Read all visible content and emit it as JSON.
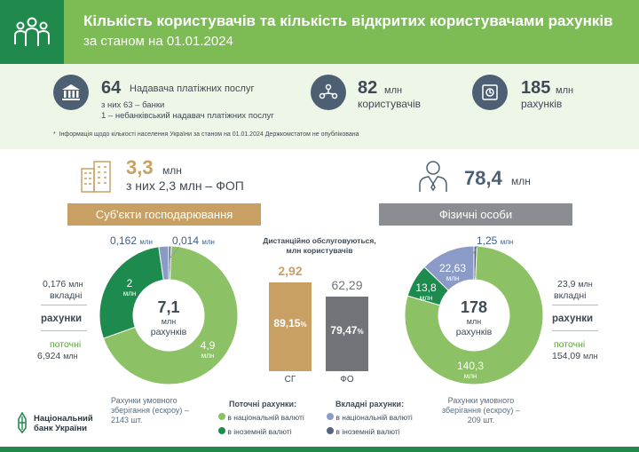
{
  "header": {
    "title": "Кількість користувачів та кількість відкритих користувачами рахунків",
    "subtitle": "за станом на 01.01.2024"
  },
  "stats": {
    "providers": {
      "number": "64",
      "label": "Надавача платіжних послуг",
      "line1": "з них 63 – банки",
      "line2": "1 – небанківський надавач платіжних послуг"
    },
    "users": {
      "number": "82",
      "unit": "млн",
      "label": "користувачів"
    },
    "accounts": {
      "number": "185",
      "unit": "млн",
      "label": "рахунків"
    },
    "footnote": "Інформація щодо кількості населення України за станом на 01.01.2024 Держкомстатом не опублікована"
  },
  "business": {
    "number": "3,3",
    "unit": "млн",
    "sub": "з них 2,3 млн – ФОП",
    "banner": "Суб'єкти господарювання"
  },
  "individuals": {
    "number": "78,4",
    "unit": "млн",
    "banner": "Фізичні особи"
  },
  "left_side": {
    "deposit_value": "0,176",
    "deposit_unit": "млн",
    "deposit_label": "вкладні",
    "accounts_label": "рахунки",
    "current_label": "поточні",
    "current_value": "6,924",
    "current_unit": "млн",
    "escrow_line1": "Рахунки умовного",
    "escrow_line2": "зберігання (ескроу) –",
    "escrow_line3": "2143 шт."
  },
  "right_side": {
    "deposit_value": "23,9",
    "deposit_unit": "млн",
    "deposit_label": "вкладні",
    "accounts_label": "рахунки",
    "current_label": "поточні",
    "current_value": "154,09",
    "current_unit": "млн",
    "escrow_line1": "Рахунки умовного",
    "escrow_line2": "зберігання (ескроу) –",
    "escrow_line3": "209 шт."
  },
  "donut_left": {
    "center_value": "7,1",
    "center_unit": "млн",
    "center_label": "рахунків",
    "label_big": "4,9",
    "label_big_unit": "млн",
    "label_mid": "2",
    "label_mid_unit": "млн",
    "label_a": "0,162",
    "label_a_unit": "млн",
    "label_b": "0,014",
    "label_b_unit": "млн"
  },
  "donut_right": {
    "center_value": "178",
    "center_unit": "млн",
    "center_label": "рахунків",
    "label_big": "140,3",
    "label_big_unit": "млн",
    "label_mid": "13,8",
    "label_mid_unit": "млн",
    "label_a": "22,63",
    "label_a_unit": "млн",
    "label_b": "1,25",
    "label_b_unit": "млн"
  },
  "remote": {
    "title1": "Дистанційно обслуговуються,",
    "title2": "млн користувачів",
    "sg_value": "2,92",
    "sg_pct": "89,15",
    "sg_label": "СГ",
    "fo_value": "62,29",
    "fo_pct": "79,47",
    "fo_label": "ФО",
    "pct_sign": "%"
  },
  "legend": {
    "current_title": "Поточні рахунки:",
    "deposit_title": "Вкладні рахунки:",
    "national": "в національній валюті",
    "foreign": "в іноземній валюті"
  },
  "nbu": {
    "line1": "Національний",
    "line2": "банк України"
  },
  "colors": {
    "current_national": "#8cc265",
    "current_foreign": "#1d8a4e",
    "deposit_national": "#8b9bc8",
    "deposit_foreign": "#56657e",
    "sg_bar": "#c9a063",
    "fo_bar": "#707479",
    "banner_left": "#c9a063",
    "banner_right": "#8a8d91"
  },
  "chart_data": [
    {
      "type": "pie",
      "title": "Суб'єкти господарювання",
      "unit": "млн",
      "categories": [
        "поточні в національній валюті",
        "поточні в іноземній валюті",
        "вкладні в національній валюті",
        "вкладні в іноземній валюті"
      ],
      "values": [
        4.9,
        2,
        0.162,
        0.014
      ],
      "total": 7.1
    },
    {
      "type": "pie",
      "title": "Фізичні особи",
      "unit": "млн",
      "categories": [
        "поточні в національній валюті",
        "поточні в іноземній валюті",
        "вкладні в національній валюті",
        "вкладні в іноземній валюті"
      ],
      "values": [
        140.3,
        13.8,
        22.63,
        1.25
      ],
      "total": 178
    },
    {
      "type": "bar",
      "title": "Дистанційно обслуговуються, млн користувачів",
      "categories": [
        "СГ",
        "ФО"
      ],
      "values": [
        2.92,
        62.29
      ],
      "shares_pct": [
        89.15,
        79.47
      ]
    }
  ]
}
